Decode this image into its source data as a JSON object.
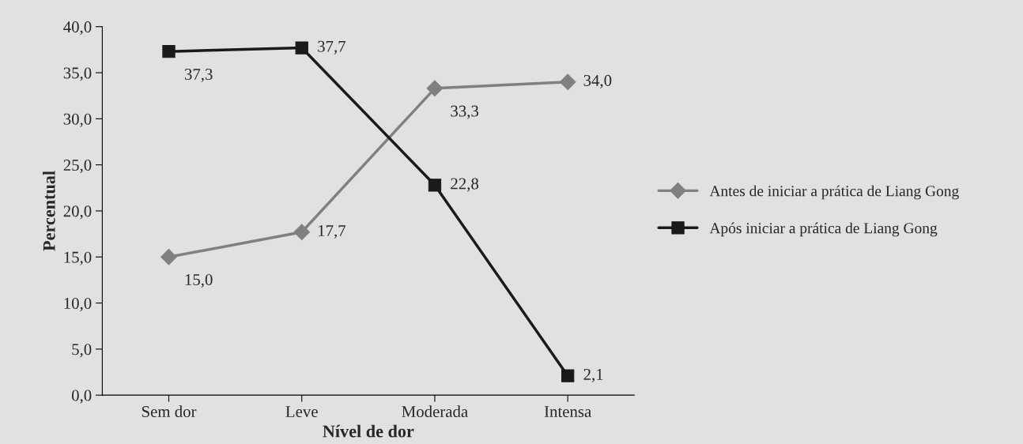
{
  "chart_data": {
    "type": "line",
    "xlabel": "Nível de dor",
    "ylabel": "Percentual",
    "categories": [
      "Sem dor",
      "Leve",
      "Moderada",
      "Intensa"
    ],
    "series": [
      {
        "name": "Antes de iniciar a prática de Liang Gong",
        "color": "#808080",
        "marker": "diamond",
        "values": [
          15.0,
          17.7,
          33.3,
          34.0
        ],
        "value_labels": [
          "15,0",
          "17,7",
          "33,3",
          "34,0"
        ]
      },
      {
        "name": "Após iniciar a prática de Liang Gong",
        "color": "#1a1a1a",
        "marker": "square",
        "values": [
          37.3,
          37.7,
          22.8,
          2.1
        ],
        "value_labels": [
          "37,3",
          "37,7",
          "22,8",
          "2,1"
        ]
      }
    ],
    "ylim": [
      0,
      40
    ],
    "yticks": [
      {
        "value": 0,
        "label": "0,0"
      },
      {
        "value": 5,
        "label": "5,0"
      },
      {
        "value": 10,
        "label": "10,0"
      },
      {
        "value": 15,
        "label": "15,0"
      },
      {
        "value": 20,
        "label": "20,0"
      },
      {
        "value": 25,
        "label": "25,0"
      },
      {
        "value": 30,
        "label": "30,0"
      },
      {
        "value": 35,
        "label": "35,0"
      },
      {
        "value": 40,
        "label": "40,0"
      }
    ],
    "grid": false,
    "legend": "right"
  }
}
